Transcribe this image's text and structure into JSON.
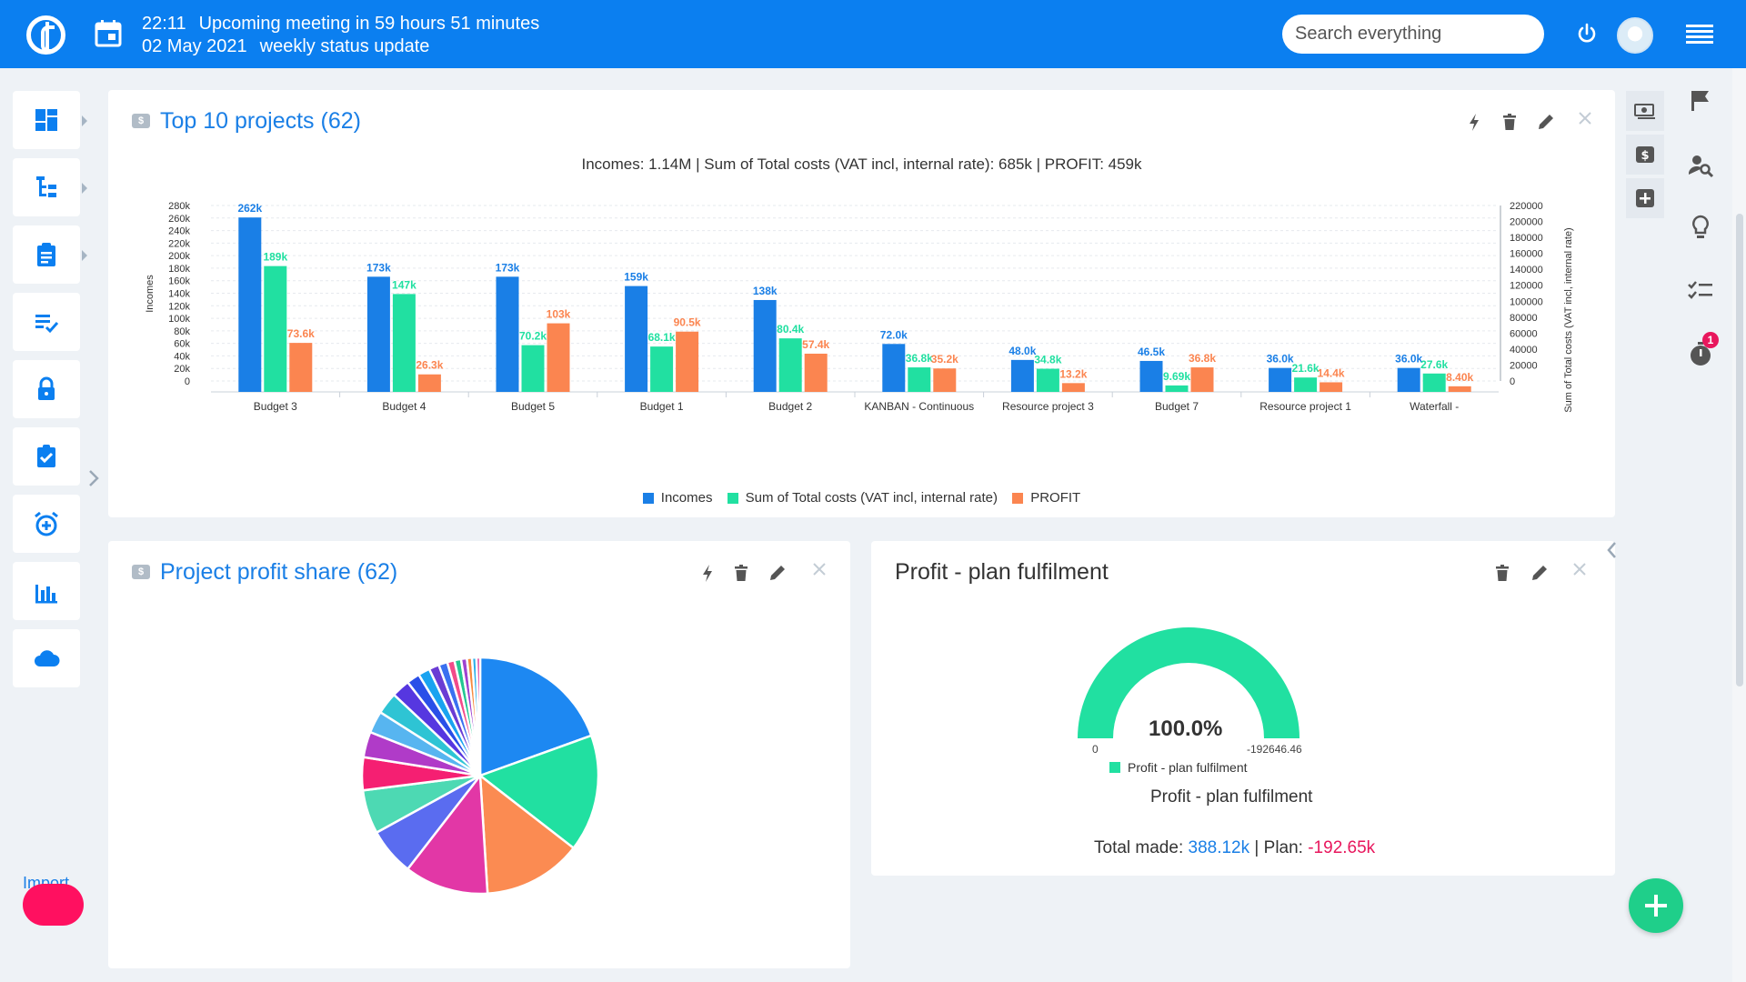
{
  "topbar": {
    "time": "22:11",
    "meeting_label": "Upcoming meeting in 59 hours 51 minutes",
    "date": "02 May 2021",
    "meeting_title": "weekly status update",
    "search_placeholder": "Search everything"
  },
  "sidebar": {
    "items": [
      {
        "icon": "dashboard-icon",
        "has_submenu": true
      },
      {
        "icon": "project-tree-icon",
        "has_submenu": true
      },
      {
        "icon": "clipboard-icon",
        "has_submenu": true
      },
      {
        "icon": "task-list-icon",
        "has_submenu": false
      },
      {
        "icon": "lock-icon",
        "has_submenu": false
      },
      {
        "icon": "checklist-icon",
        "has_submenu": false
      },
      {
        "icon": "alarm-add-icon",
        "has_submenu": false
      },
      {
        "icon": "bar-chart-icon",
        "has_submenu": false
      },
      {
        "icon": "cloud-icon",
        "has_submenu": false
      }
    ],
    "import_label": "Import"
  },
  "top_projects": {
    "title": "Top 10 projects (62)",
    "summary": "Incomes: 1.14M | Sum of Total costs (VAT incl, internal rate): 685k | PROFIT: 459k"
  },
  "profit_share": {
    "title": "Project profit share (62)"
  },
  "plan_fulfilment": {
    "title": "Profit - plan fulfilment",
    "value_label": "100.0%",
    "min_label": "0",
    "max_label": "-192646.46",
    "legend_label": "Profit - plan fulfilment",
    "caption": "Profit - plan fulfilment",
    "total_label": "Total made:",
    "total_value": "388.12k",
    "plan_label": "Plan:",
    "plan_value": "-192.65k",
    "fulfilment": 1.0,
    "color": "#21e0a1"
  },
  "notifications": {
    "badge": "1"
  },
  "colors": {
    "brand": "#0b7ff0",
    "incomes": "#1a7fe6",
    "costs": "#21e0a1",
    "profit": "#fb8550"
  },
  "chart_data": [
    {
      "type": "bar",
      "title": "Incomes: 1.14M | Sum of Total costs (VAT incl, internal rate): 685k | PROFIT: 459k",
      "categories": [
        "Budget 3",
        "Budget 4",
        "Budget 5",
        "Budget 1",
        "Budget 2",
        "KANBAN - Continuous",
        "Resource project 3",
        "Budget 7",
        "Resource project 1",
        "Waterfall -"
      ],
      "series": [
        {
          "name": "Incomes",
          "color": "#1a7fe6",
          "values": [
            262000,
            173000,
            173000,
            159000,
            138000,
            72000,
            48000,
            46500,
            36000,
            36000
          ],
          "labels": [
            "262k",
            "173k",
            "173k",
            "159k",
            "138k",
            "72.0k",
            "48.0k",
            "46.5k",
            "36.0k",
            "36.0k"
          ]
        },
        {
          "name": "Sum of Total costs (VAT incl, internal rate)",
          "color": "#21e0a1",
          "values": [
            189000,
            147000,
            70200,
            68100,
            80400,
            36800,
            34800,
            9690,
            21600,
            27600
          ],
          "labels": [
            "189k",
            "147k",
            "70.2k",
            "68.1k",
            "80.4k",
            "36.8k",
            "34.8k",
            "9.69k",
            "21.6k",
            "27.6k"
          ]
        },
        {
          "name": "PROFIT",
          "color": "#fb8550",
          "values": [
            73600,
            26300,
            103000,
            90500,
            57400,
            35200,
            13200,
            36800,
            14400,
            8400
          ],
          "labels": [
            "73.6k",
            "26.3k",
            "103k",
            "90.5k",
            "57.4k",
            "35.2k",
            "13.2k",
            "36.8k",
            "14.4k",
            "8.40k"
          ]
        }
      ],
      "ylabel": "Incomes",
      "y2label": "Sum of Total costs (VAT incl, internal rate)",
      "ylim": [
        0,
        280000
      ],
      "y_ticks": [
        "0",
        "20k",
        "40k",
        "60k",
        "80k",
        "100k",
        "120k",
        "140k",
        "160k",
        "180k",
        "200k",
        "220k",
        "240k",
        "260k",
        "280k"
      ],
      "y2lim": [
        0,
        220000
      ],
      "y2_ticks": [
        "0",
        "20000",
        "40000",
        "60000",
        "80000",
        "100000",
        "120000",
        "140000",
        "160000",
        "180000",
        "200000",
        "220000"
      ],
      "grid": true,
      "legend": "bottom"
    },
    {
      "type": "pie",
      "slices": [
        {
          "value": 19.5,
          "color": "#1d88f2"
        },
        {
          "value": 16.0,
          "color": "#21e0a1"
        },
        {
          "value": 13.5,
          "color": "#fb8b52"
        },
        {
          "value": 11.5,
          "color": "#e237a6"
        },
        {
          "value": 6.5,
          "color": "#5a6cf0"
        },
        {
          "value": 6.0,
          "color": "#4dd9b3"
        },
        {
          "value": 4.5,
          "color": "#f51f72"
        },
        {
          "value": 3.5,
          "color": "#b03bc8"
        },
        {
          "value": 3.0,
          "color": "#57b5f0"
        },
        {
          "value": 3.0,
          "color": "#2ec4d4"
        },
        {
          "value": 2.5,
          "color": "#5637e0"
        },
        {
          "value": 1.8,
          "color": "#2a4fe8"
        },
        {
          "value": 1.6,
          "color": "#1aa3f0"
        },
        {
          "value": 1.4,
          "color": "#6a3cd4"
        },
        {
          "value": 1.2,
          "color": "#3a70f0"
        },
        {
          "value": 1.0,
          "color": "#f24b8a"
        },
        {
          "value": 0.9,
          "color": "#23c792"
        },
        {
          "value": 0.8,
          "color": "#9e42d0"
        },
        {
          "value": 0.7,
          "color": "#f58a3f"
        },
        {
          "value": 0.6,
          "color": "#2bb0e8"
        },
        {
          "value": 0.5,
          "color": "#e03d9a"
        }
      ]
    }
  ]
}
